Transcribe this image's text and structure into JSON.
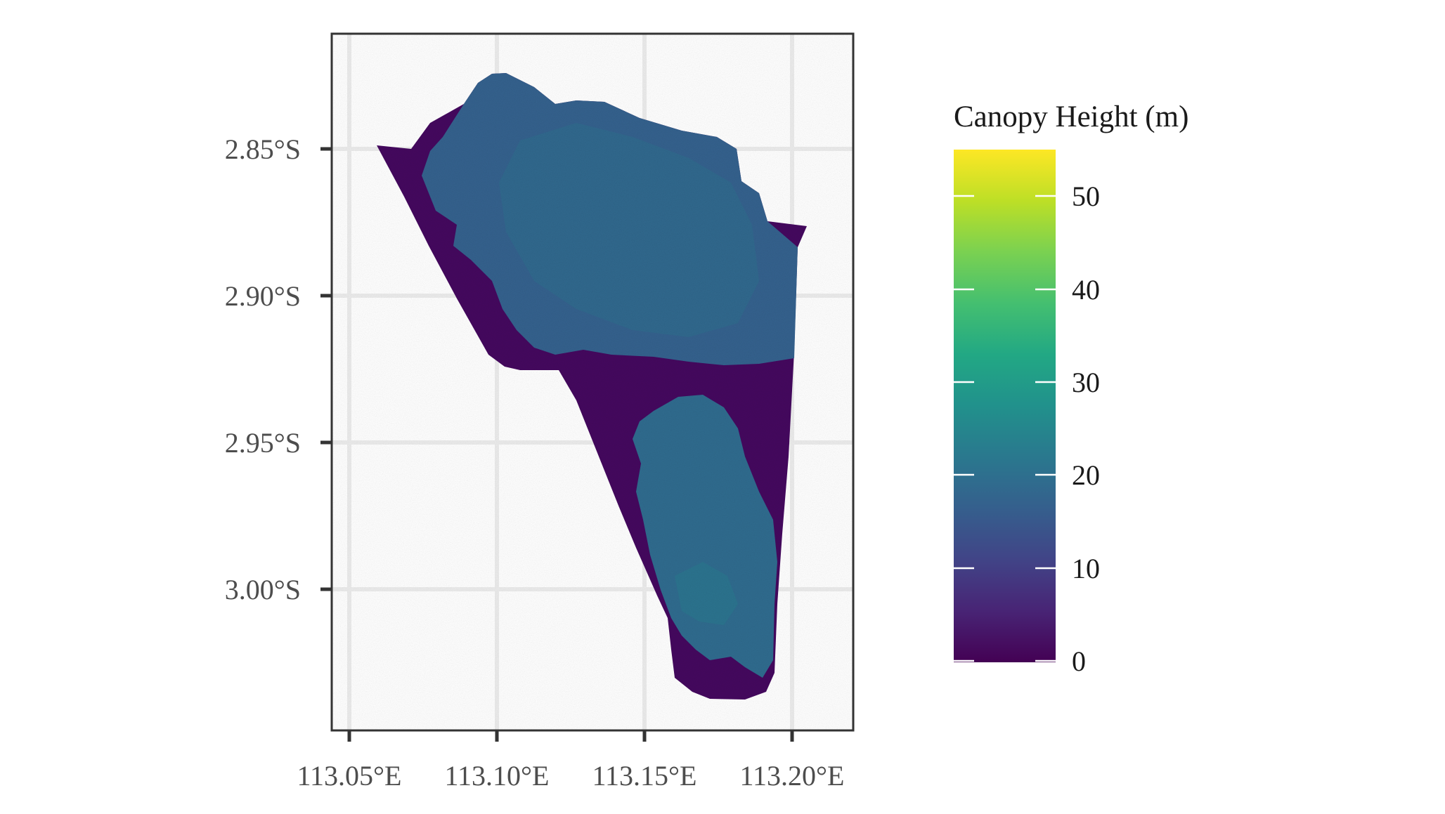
{
  "chart_data": {
    "type": "heatmap",
    "title": "",
    "xlabel": "",
    "ylabel": "",
    "x_ticks": [
      "113.05°E",
      "113.10°E",
      "113.15°E",
      "113.20°E"
    ],
    "y_ticks": [
      "2.85°S",
      "2.90°S",
      "2.95°S",
      "3.00°S"
    ],
    "x_tick_values": [
      113.05,
      113.1,
      113.15,
      113.2
    ],
    "y_tick_values": [
      -2.85,
      -2.9,
      -2.95,
      -3.0
    ],
    "xlim": [
      113.044,
      113.22
    ],
    "ylim": [
      -3.048,
      -2.81
    ],
    "grid": true,
    "colormap": "viridis",
    "legend": {
      "title": "Canopy Height (m)",
      "position": "right",
      "ticks": [
        "0",
        "10",
        "20",
        "30",
        "40",
        "50"
      ],
      "tick_values": [
        0,
        10,
        20,
        30,
        40,
        50
      ],
      "range": [
        0,
        55
      ]
    },
    "regions": [
      {
        "description": "low canopy strip along western edge",
        "value_range": [
          0,
          8
        ]
      },
      {
        "description": "northern forest block",
        "value_range": [
          15,
          25
        ]
      },
      {
        "description": "central east-west low band",
        "value_range": [
          0,
          5
        ]
      },
      {
        "description": "southern forest lobe",
        "value_range": [
          15,
          30
        ]
      }
    ]
  },
  "colors": {
    "axis_line": "#333333",
    "grid": "#ebebeb",
    "tick_text": "#4d4d4d",
    "legend_text": "#1a1a1a"
  }
}
